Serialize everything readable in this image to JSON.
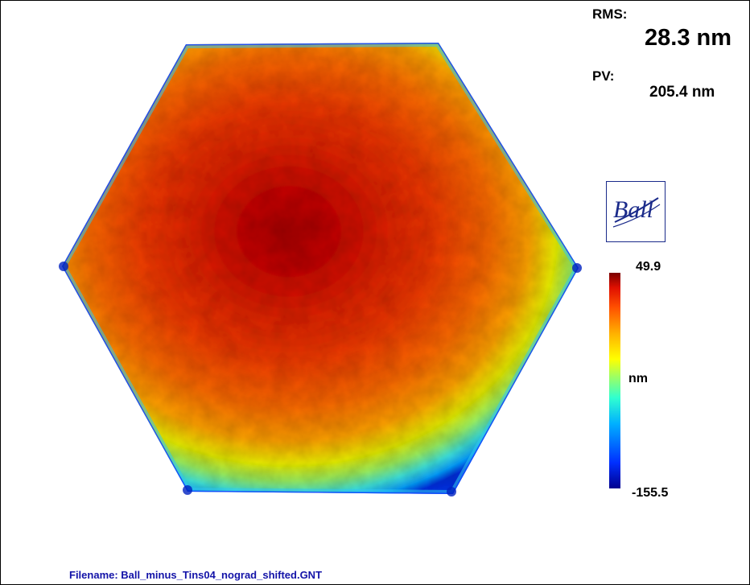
{
  "stats": {
    "rms_label": "RMS:",
    "rms_value": "28.3 nm",
    "pv_label": "PV:",
    "pv_value": "205.4  nm"
  },
  "logo": {
    "text": "Ball",
    "color": "#1a2a8a"
  },
  "color_scale": {
    "max": "49.9",
    "unit": "nm",
    "min": "-155.5",
    "colormap": [
      "#00008f",
      "#0030ff",
      "#00b0ff",
      "#30ffd0",
      "#a0ff60",
      "#ffff00",
      "#ffb000",
      "#ff5000",
      "#e01000",
      "#7a0000"
    ]
  },
  "footer": {
    "filename": "Filename: Ball_minus_Tins04_nograd_shifted.GNT"
  }
}
